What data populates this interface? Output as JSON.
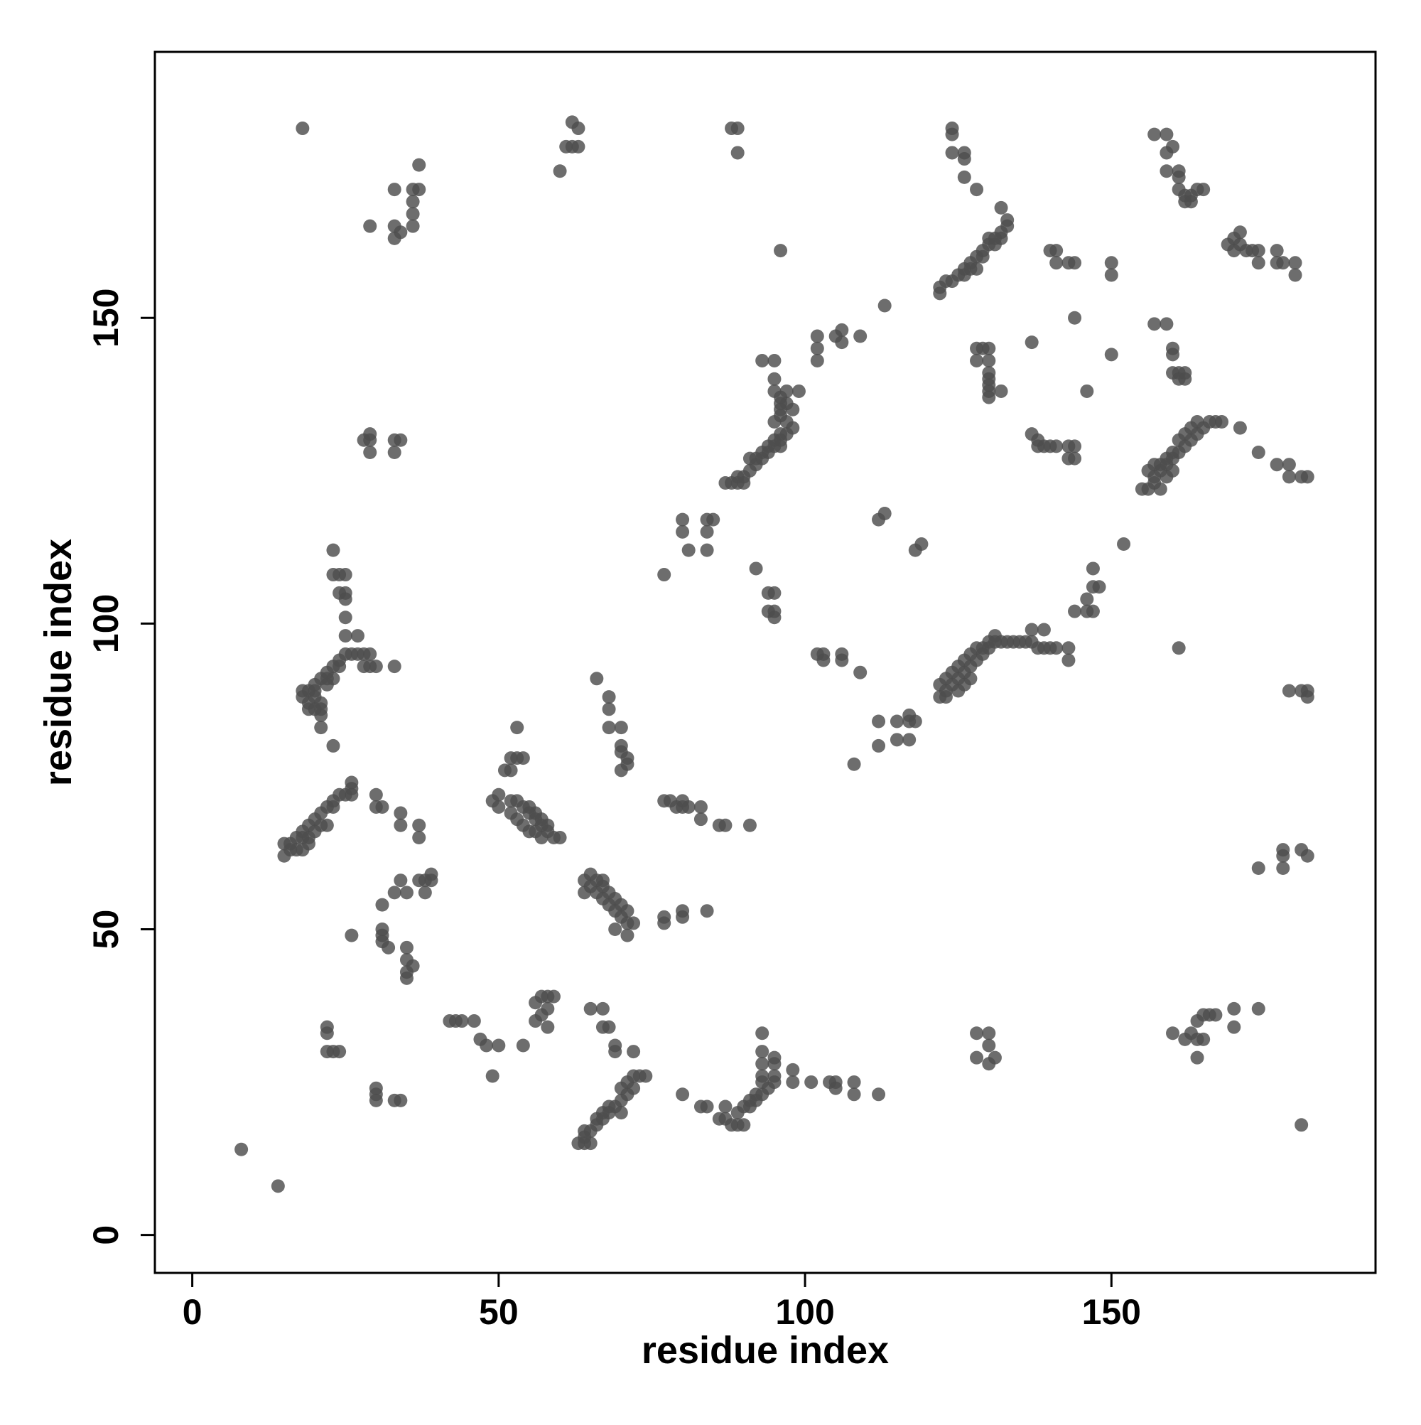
{
  "chart_data": {
    "type": "scatter",
    "x_label": "residue index",
    "y_label": "residue index",
    "xlim": [
      -6.1,
      193.1
    ],
    "ylim": [
      -6.2,
      193.5
    ],
    "xticks": [
      0,
      50,
      100,
      150
    ],
    "yticks": [
      0,
      50,
      100,
      150
    ],
    "series": [
      {
        "color": "#4d4d4d",
        "x": [
          18,
          60,
          61,
          62,
          63,
          62,
          63,
          88,
          89,
          89,
          29,
          33,
          33,
          34,
          36,
          36,
          33,
          36,
          37,
          37,
          36,
          124,
          124,
          124,
          126,
          126,
          126,
          128,
          122,
          122,
          123,
          124,
          125,
          126,
          127,
          128,
          129,
          130,
          131,
          132,
          133,
          133,
          132,
          126,
          127,
          128,
          129,
          130,
          131,
          132,
          96,
          140,
          141,
          141,
          144,
          143,
          150,
          150,
          157,
          159,
          159,
          159,
          160,
          161,
          161,
          161,
          162,
          163,
          164,
          165,
          162,
          163,
          169,
          170,
          170,
          171,
          171,
          172,
          173,
          174,
          174,
          177,
          177,
          178,
          180,
          180,
          113,
          102,
          102,
          102,
          105,
          106,
          106,
          109,
          93,
          95,
          95,
          95,
          96,
          96,
          97,
          97,
          98,
          99,
          87,
          88,
          89,
          90,
          91,
          92,
          93,
          94,
          95,
          96,
          97,
          98,
          89,
          90,
          91,
          92,
          93,
          94,
          95,
          96,
          96,
          95,
          96,
          96,
          97,
          80,
          80,
          81,
          84,
          85,
          84,
          84,
          77,
          113,
          112,
          118,
          119,
          92,
          94,
          95,
          94,
          95,
          95,
          28,
          29,
          29,
          29,
          33,
          34,
          33,
          23,
          23,
          24,
          25,
          24,
          25,
          25,
          25,
          25,
          27,
          18,
          18,
          19,
          19,
          20,
          20,
          21,
          22,
          23,
          24,
          25,
          26,
          27,
          28,
          29,
          28,
          29,
          30,
          33,
          20,
          21,
          21,
          21,
          21,
          22,
          22,
          23,
          24,
          19,
          20,
          23,
          102,
          103,
          103,
          106,
          106,
          109,
          122,
          122,
          123,
          124,
          125,
          126,
          127,
          128,
          129,
          130,
          131,
          132,
          133,
          134,
          135,
          136,
          137,
          138,
          139,
          140,
          141,
          123,
          124,
          125,
          126,
          127,
          128,
          129,
          130,
          131,
          137,
          139,
          143,
          143,
          123,
          125,
          126,
          127,
          144,
          146,
          147,
          146,
          147,
          148,
          147,
          152,
          161,
          144,
          137,
          146,
          150,
          128,
          129,
          128,
          130,
          130,
          130,
          130,
          130,
          130,
          130,
          132,
          157,
          159,
          160,
          160,
          160,
          161,
          161,
          162,
          162,
          137,
          138,
          138,
          139,
          140,
          141,
          143,
          144,
          143,
          144,
          155,
          156,
          157,
          157,
          158,
          159,
          160,
          161,
          162,
          163,
          164,
          165,
          166,
          167,
          168,
          156,
          157,
          158,
          159,
          160,
          161,
          162,
          163,
          164,
          159,
          160,
          171,
          174,
          177,
          179,
          179,
          181,
          182,
          158,
          179,
          181,
          182,
          182,
          108,
          112,
          112,
          115,
          115,
          117,
          117,
          117,
          118,
          37,
          37,
          34,
          34,
          30,
          31,
          30,
          15,
          15,
          16,
          17,
          18,
          19,
          20,
          21,
          22,
          23,
          24,
          26,
          26,
          16,
          17,
          18,
          19,
          20,
          21,
          22,
          23,
          25,
          26,
          18,
          19,
          49,
          50,
          50,
          52,
          53,
          54,
          55,
          55,
          56,
          56,
          57,
          57,
          58,
          58,
          59,
          60,
          57,
          52,
          53,
          54,
          55,
          56,
          51,
          52,
          52,
          53,
          54,
          53,
          66,
          68,
          68,
          68,
          70,
          70,
          70,
          71,
          70,
          71,
          77,
          78,
          79,
          80,
          80,
          81,
          83,
          83,
          86,
          87,
          91,
          64,
          64,
          65,
          65,
          66,
          66,
          67,
          67,
          68,
          68,
          69,
          69,
          70,
          70,
          71,
          71,
          72,
          71,
          69,
          67,
          77,
          77,
          80,
          80,
          84,
          33,
          34,
          35,
          37,
          38,
          38,
          39,
          39,
          26,
          31,
          31,
          31,
          31,
          32,
          35,
          35,
          35,
          36,
          35,
          178,
          178,
          178,
          181,
          182,
          174,
          42,
          43,
          44,
          46,
          47,
          48,
          50,
          49,
          54,
          56,
          56,
          57,
          58,
          57,
          58,
          59,
          58,
          65,
          67,
          67,
          68,
          69,
          69,
          72,
          22,
          22,
          22,
          23,
          24,
          30,
          30,
          30,
          33,
          34,
          63,
          64,
          65,
          66,
          67,
          68,
          69,
          70,
          71,
          72,
          72,
          73,
          74,
          64,
          65,
          64,
          66,
          67,
          68,
          70,
          70,
          71,
          80,
          83,
          84,
          87,
          86,
          87,
          88,
          89,
          90,
          89,
          90,
          91,
          92,
          93,
          94,
          95,
          91,
          92,
          93,
          93,
          93,
          93,
          93,
          95,
          95,
          95,
          98,
          98,
          101,
          104,
          105,
          105,
          108,
          108,
          112,
          128,
          130,
          130,
          128,
          130,
          131,
          160,
          162,
          163,
          164,
          165,
          166,
          167,
          164,
          164,
          165,
          170,
          170,
          174,
          181,
          8,
          14
        ],
        "y": [
          181,
          174,
          178,
          178,
          178,
          182,
          181,
          181,
          181,
          177,
          165,
          165,
          163,
          164,
          165,
          167,
          171,
          171,
          171,
          175,
          169,
          181,
          180,
          177,
          177,
          176,
          173,
          171,
          155,
          154,
          156,
          156,
          157,
          158,
          159,
          160,
          161,
          162,
          163,
          164,
          165,
          166,
          168,
          157,
          158,
          158,
          160,
          163,
          162,
          163,
          161,
          161,
          161,
          159,
          159,
          159,
          159,
          157,
          180,
          180,
          177,
          174,
          178,
          174,
          173,
          171,
          170,
          170,
          171,
          171,
          169,
          169,
          162,
          163,
          161,
          164,
          162,
          161,
          161,
          161,
          159,
          161,
          159,
          159,
          159,
          157,
          152,
          147,
          145,
          143,
          147,
          148,
          146,
          147,
          143,
          143,
          140,
          138,
          137,
          136,
          138,
          136,
          135,
          138,
          123,
          123,
          124,
          124,
          125,
          126,
          127,
          128,
          129,
          130,
          131,
          132,
          123,
          123,
          127,
          127,
          128,
          129,
          130,
          131,
          129,
          133,
          134,
          135,
          133,
          117,
          115,
          112,
          117,
          117,
          115,
          112,
          108,
          118,
          117,
          112,
          113,
          109,
          105,
          105,
          102,
          102,
          101,
          130,
          130,
          131,
          128,
          130,
          130,
          128,
          112,
          108,
          108,
          108,
          105,
          105,
          104,
          101,
          98,
          98,
          89,
          88,
          87,
          89,
          89,
          90,
          91,
          92,
          93,
          94,
          95,
          95,
          95,
          95,
          95,
          93,
          93,
          93,
          93,
          88,
          87,
          86,
          85,
          83,
          90,
          91,
          91,
          93,
          86,
          86,
          80,
          95,
          95,
          94,
          95,
          94,
          92,
          88,
          90,
          89,
          90,
          91,
          92,
          93,
          94,
          95,
          96,
          97,
          97,
          97,
          97,
          97,
          97,
          97,
          96,
          96,
          96,
          96,
          91,
          92,
          93,
          94,
          95,
          96,
          96,
          97,
          98,
          99,
          99,
          96,
          94,
          88,
          89,
          90,
          91,
          102,
          102,
          102,
          104,
          106,
          106,
          109,
          113,
          96,
          150,
          146,
          138,
          144,
          145,
          145,
          143,
          145,
          143,
          141,
          140,
          139,
          138,
          137,
          138,
          149,
          149,
          145,
          144,
          141,
          141,
          140,
          140,
          141,
          131,
          130,
          129,
          129,
          129,
          129,
          129,
          129,
          127,
          127,
          122,
          122,
          123,
          124,
          125,
          126,
          127,
          128,
          129,
          130,
          131,
          132,
          133,
          133,
          133,
          125,
          126,
          126,
          127,
          128,
          130,
          131,
          132,
          133,
          124,
          125,
          132,
          128,
          126,
          126,
          124,
          124,
          124,
          122,
          89,
          89,
          89,
          88,
          77,
          80,
          84,
          84,
          81,
          81,
          84,
          85,
          84,
          65,
          67,
          69,
          67,
          70,
          70,
          72,
          62,
          64,
          64,
          65,
          66,
          67,
          68,
          69,
          70,
          71,
          72,
          73,
          74,
          63,
          63,
          63,
          65,
          66,
          67,
          67,
          70,
          72,
          72,
          65,
          64,
          71,
          70,
          72,
          71,
          71,
          70,
          70,
          69,
          68,
          69,
          68,
          67,
          66,
          67,
          65,
          65,
          65,
          69,
          68,
          67,
          66,
          66,
          76,
          76,
          78,
          78,
          78,
          83,
          91,
          88,
          86,
          83,
          83,
          80,
          79,
          78,
          76,
          77,
          71,
          71,
          70,
          71,
          70,
          70,
          70,
          68,
          67,
          67,
          67,
          56,
          58,
          57,
          59,
          56,
          58,
          55,
          57,
          54,
          56,
          53,
          55,
          52,
          54,
          51,
          53,
          51,
          49,
          50,
          58,
          51,
          52,
          52,
          53,
          53,
          56,
          58,
          56,
          58,
          58,
          56,
          58,
          59,
          49,
          54,
          50,
          49,
          48,
          47,
          47,
          45,
          43,
          44,
          42,
          60,
          62,
          63,
          63,
          62,
          60,
          35,
          35,
          35,
          35,
          32,
          31,
          31,
          26,
          31,
          38,
          35,
          36,
          34,
          39,
          39,
          39,
          37,
          37,
          37,
          34,
          34,
          31,
          30,
          30,
          34,
          33,
          30,
          30,
          30,
          24,
          23,
          22,
          22,
          22,
          15,
          16,
          17,
          18,
          19,
          20,
          21,
          22,
          23,
          24,
          26,
          26,
          26,
          15,
          15,
          17,
          19,
          20,
          21,
          20,
          24,
          25,
          23,
          21,
          21,
          21,
          19,
          19,
          18,
          18,
          18,
          20,
          21,
          22,
          22,
          23,
          24,
          25,
          21,
          23,
          25,
          26,
          28,
          30,
          33,
          29,
          28,
          26,
          27,
          25,
          25,
          25,
          25,
          24,
          25,
          23,
          23,
          33,
          33,
          31,
          29,
          28,
          29,
          33,
          32,
          33,
          35,
          36,
          36,
          36,
          29,
          32,
          32,
          37,
          34,
          37,
          18,
          14,
          8
        ]
      }
    ]
  }
}
